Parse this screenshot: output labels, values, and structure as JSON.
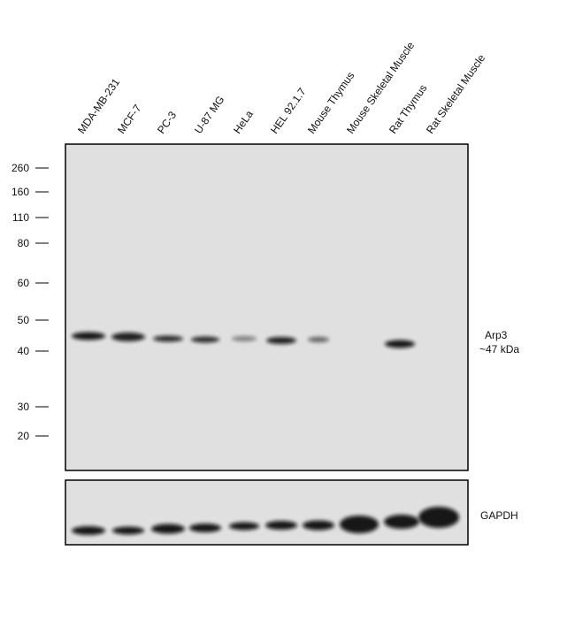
{
  "lanes": [
    "MDA-MB-231",
    "MCF-7",
    "PC-3",
    "U-87 MG",
    "HeLa",
    "HEL 92.1.7",
    "Mouse Thymus",
    "Mouse Skeletal Muscle",
    "Rat Thymus",
    "Rat Skeletal Muscle"
  ],
  "markers": [
    260,
    160,
    110,
    80,
    60,
    50,
    40,
    30,
    20
  ],
  "annotations": {
    "target": "Arp3",
    "size": "~47 kDa",
    "loading_control": "GAPDH"
  }
}
